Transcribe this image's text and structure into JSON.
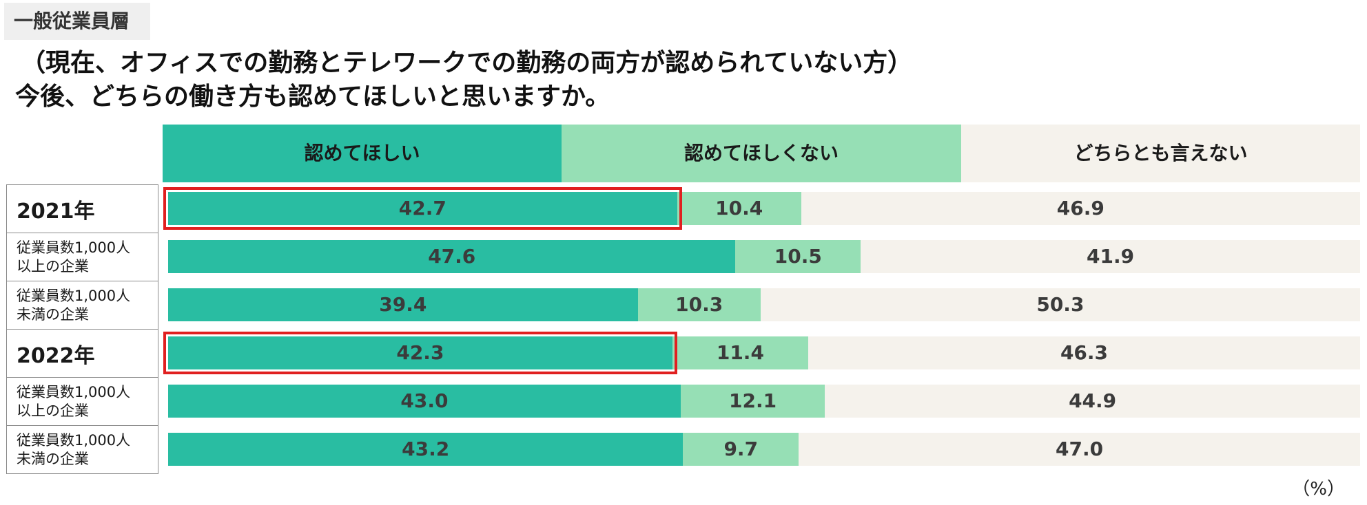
{
  "tag": "一般従業員層",
  "title_line1": "（現在、オフィスでの勤務とテレワークでの勤務の両方が認められていない方）",
  "title_line2": "今後、どちらの働き方も認めてほしいと思いますか。",
  "unit": "（%）",
  "colors": {
    "yes": "#29bda2",
    "no": "#96dfb5",
    "neither": "#f5f2ec",
    "highlight": "#e02020"
  },
  "chart_data": {
    "type": "bar",
    "orientation": "horizontal",
    "stacked": true,
    "categories": [
      "2021年",
      "従業員数1,000人\n以上の企業",
      "従業員数1,000人\n未満の企業",
      "2022年",
      "従業員数1,000人\n以上の企業",
      "従業員数1,000人\n未満の企業"
    ],
    "series": [
      {
        "name": "認めてほしい",
        "values": [
          42.7,
          47.6,
          39.4,
          42.3,
          43.0,
          43.2
        ]
      },
      {
        "name": "認めてほしくない",
        "values": [
          10.4,
          10.5,
          10.3,
          11.4,
          12.1,
          9.7
        ]
      },
      {
        "name": "どちらとも言えない",
        "values": [
          46.9,
          41.9,
          50.3,
          46.3,
          44.9,
          47.0
        ]
      }
    ],
    "value_labels": [
      [
        "42.7",
        "47.6",
        "39.4",
        "42.3",
        "43.0",
        "43.2"
      ],
      [
        "10.4",
        "10.5",
        "10.3",
        "11.4",
        "12.1",
        "9.7"
      ],
      [
        "46.9",
        "41.9",
        "50.3",
        "46.3",
        "44.9",
        "47.0"
      ]
    ],
    "xlim": [
      0,
      100
    ],
    "legend": "top",
    "highlighted_rows": [
      0,
      3
    ]
  }
}
